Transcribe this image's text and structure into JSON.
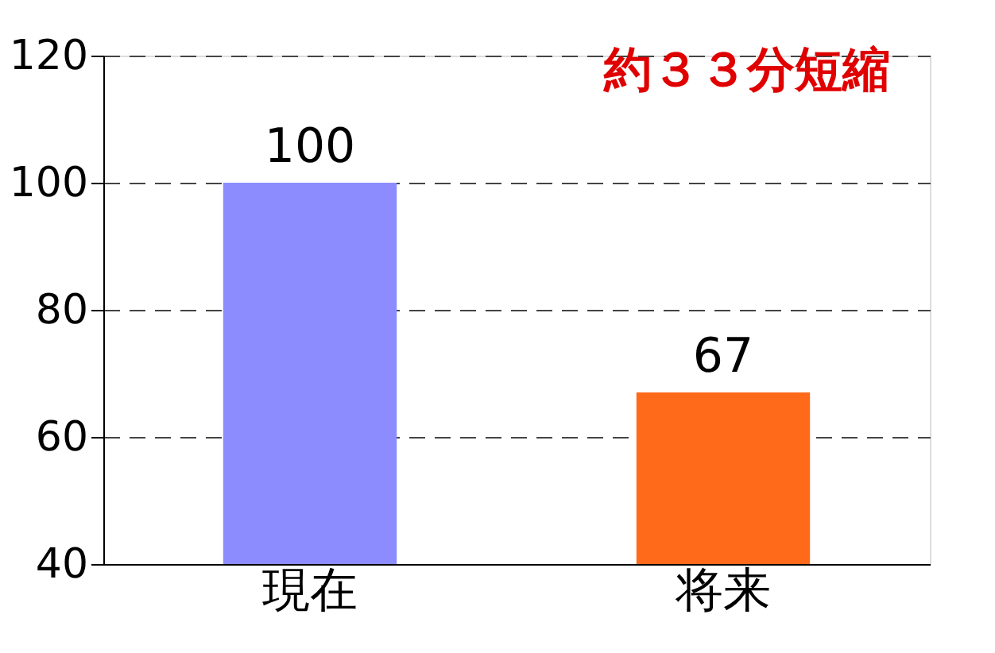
{
  "chart_data": {
    "type": "bar",
    "categories": [
      "現在",
      "将来"
    ],
    "values": [
      100,
      67
    ],
    "colors": [
      "#8c8cff",
      "#ff6a1a"
    ],
    "ylim": [
      40,
      120
    ],
    "yticks": [
      40,
      60,
      80,
      100,
      120
    ],
    "grid": "y",
    "data_labels": true,
    "annotations": [
      "約３３分短縮"
    ]
  }
}
